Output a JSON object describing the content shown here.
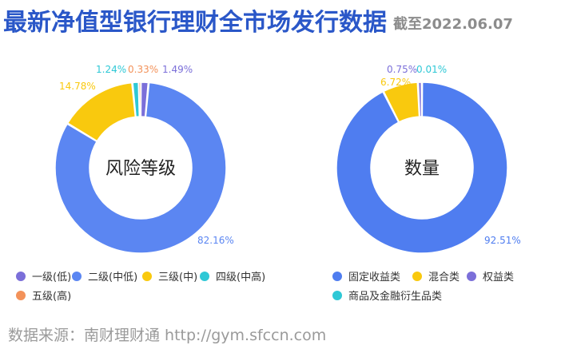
{
  "header": {
    "title": "最新净值型银行理财全市场发行数据",
    "date": "截至2022.06.07"
  },
  "footer": {
    "source": "数据来源：南财理财通 http://gym.sfccn.com"
  },
  "chart_data": [
    {
      "type": "pie",
      "center_label": "风险等级",
      "categories": [
        "一级(低)",
        "二级(中低)",
        "三级(中)",
        "四级(中高)",
        "五级(高)"
      ],
      "values": [
        1.49,
        82.16,
        14.78,
        1.24,
        0.33
      ],
      "labels": [
        "1.49%",
        "82.16%",
        "14.78%",
        "1.24%",
        "0.33%"
      ],
      "colors": [
        "#7b6fd9",
        "#5b86f2",
        "#f9c90e",
        "#2ec8d6",
        "#f3925a"
      ],
      "legend": "bottom"
    },
    {
      "type": "pie",
      "center_label": "数量",
      "categories": [
        "固定收益类",
        "混合类",
        "权益类",
        "商品及金融衍生品类"
      ],
      "values": [
        92.51,
        6.72,
        0.75,
        0.01
      ],
      "labels": [
        "92.51%",
        "6.72%",
        "0.75%",
        "0.01%"
      ],
      "colors": [
        "#4f7df0",
        "#f9c90e",
        "#7b6fd9",
        "#2ec8d6"
      ],
      "legend": "bottom"
    }
  ]
}
